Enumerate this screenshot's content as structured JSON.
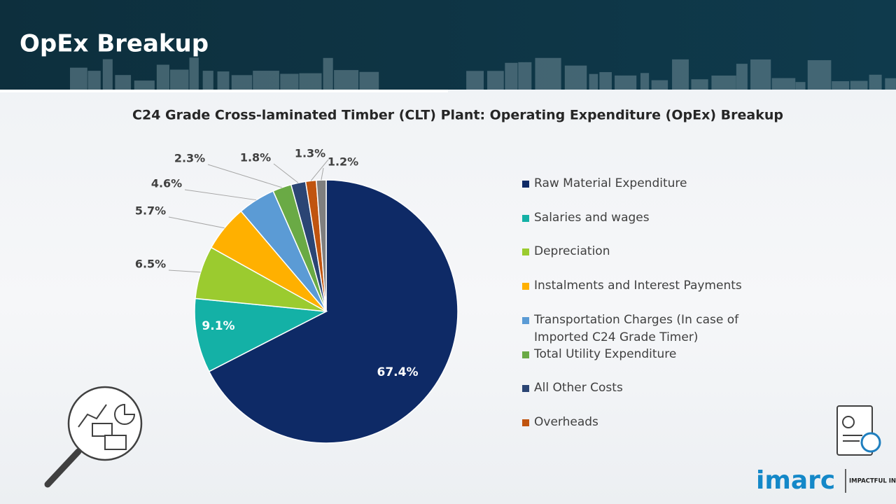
{
  "header": {
    "title": "OpEx Breakup"
  },
  "chart_data": {
    "type": "pie",
    "title": "C24 Grade Cross-laminated Timber (CLT) Plant: Operating Expenditure (OpEx) Breakup",
    "categories": [
      "Raw Material Expenditure",
      "Salaries and wages",
      "Depreciation",
      "Instalments and Interest Payments",
      "Transportation Charges (In case of Imported C24 Grade Timer)",
      "Total Utility Expenditure",
      "All Other Costs",
      "Overheads",
      null
    ],
    "values": [
      67.4,
      9.1,
      6.5,
      5.7,
      4.6,
      2.3,
      1.8,
      1.3,
      1.2
    ],
    "value_labels": [
      "67.4%",
      "9.1%",
      "6.5%",
      "5.7%",
      "4.6%",
      "2.3%",
      "1.8%",
      "1.3%",
      "1.2%"
    ],
    "colors": [
      "#0e2a66",
      "#14b1a6",
      "#9bcb2f",
      "#ffb000",
      "#5b9bd5",
      "#6aaa45",
      "#2b4574",
      "#c0540f",
      "#7f7f7f"
    ]
  },
  "logo": {
    "name": "imarc",
    "tagline": "IMPACTFUL INSIGHTS"
  }
}
